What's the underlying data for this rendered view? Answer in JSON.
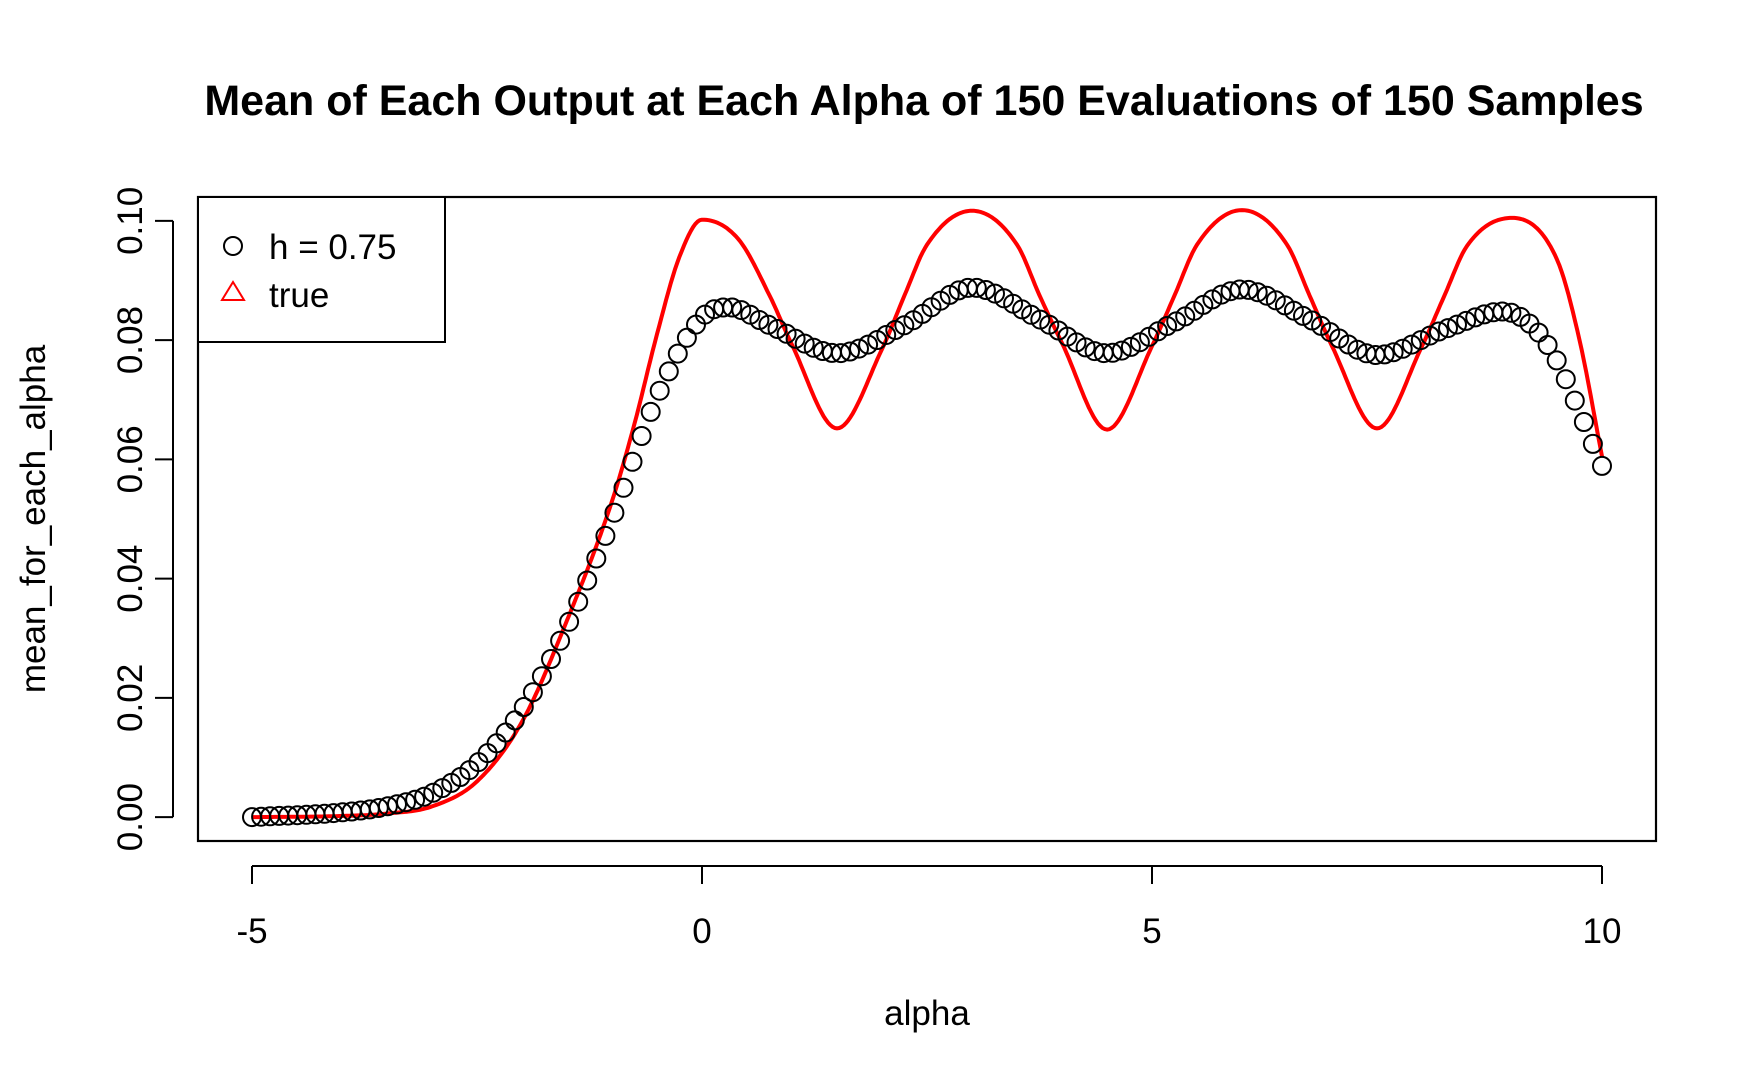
{
  "chart_data": {
    "type": "line",
    "title": "Mean of Each Output at Each Alpha of 150 Evaluations of 150 Samples",
    "xlabel": "alpha",
    "ylabel": "mean_for_each_alpha",
    "xlim": [
      -5.6,
      10.6
    ],
    "ylim": [
      -0.004,
      0.104
    ],
    "x_ticks": [
      -5,
      0,
      5,
      10
    ],
    "x_tick_labels": [
      "-5",
      "0",
      "5",
      "10"
    ],
    "y_ticks": [
      0,
      0.02,
      0.04,
      0.06,
      0.08,
      0.1
    ],
    "y_tick_labels": [
      "0.00",
      "0.02",
      "0.04",
      "0.06",
      "0.08",
      "0.10"
    ],
    "grid": false,
    "legend": {
      "position": "top-left",
      "entries": [
        "h = 0.75",
        "true"
      ]
    },
    "series": [
      {
        "name": "h = 0.75",
        "style": "points",
        "marker": "open-circle",
        "color": "#000000",
        "n_points": 150,
        "x_range": [
          -5,
          10
        ],
        "x": [
          -5.0,
          -4.0,
          -3.5,
          -3.0,
          -2.5,
          -2.0,
          -1.5,
          -1.0,
          -0.5,
          0.0,
          0.3,
          0.75,
          1.5,
          2.25,
          3.0,
          3.75,
          4.5,
          5.25,
          6.0,
          6.75,
          7.5,
          8.25,
          8.9,
          9.25,
          9.5,
          9.75,
          10.0
        ],
        "values": [
          0.0,
          0.0008,
          0.0018,
          0.004,
          0.009,
          0.018,
          0.032,
          0.05,
          0.0705,
          0.0838,
          0.0855,
          0.0825,
          0.0778,
          0.0825,
          0.0888,
          0.0835,
          0.0778,
          0.083,
          0.0885,
          0.0835,
          0.0775,
          0.0818,
          0.0848,
          0.082,
          0.0765,
          0.068,
          0.0589
        ]
      },
      {
        "name": "true",
        "style": "line",
        "marker": "triangle",
        "color": "#ff0000",
        "x": [
          -5.0,
          -4.0,
          -3.5,
          -3.0,
          -2.5,
          -2.0,
          -1.5,
          -1.0,
          -0.75,
          -0.5,
          -0.25,
          0.0,
          0.4,
          0.75,
          1.0,
          1.5,
          2.0,
          2.25,
          2.5,
          3.0,
          3.5,
          3.75,
          4.0,
          4.5,
          5.0,
          5.25,
          5.5,
          6.0,
          6.5,
          6.75,
          7.0,
          7.5,
          8.0,
          8.25,
          8.5,
          9.0,
          9.5,
          9.75,
          10.0
        ],
        "values": [
          0.0,
          0.0002,
          0.0006,
          0.0018,
          0.006,
          0.016,
          0.033,
          0.053,
          0.066,
          0.081,
          0.094,
          0.1002,
          0.097,
          0.0875,
          0.0792,
          0.0652,
          0.0785,
          0.0875,
          0.096,
          0.1017,
          0.096,
          0.0875,
          0.0795,
          0.065,
          0.079,
          0.0875,
          0.096,
          0.1018,
          0.096,
          0.0875,
          0.079,
          0.0652,
          0.079,
          0.0875,
          0.0958,
          0.1005,
          0.0935,
          0.08,
          0.0605
        ]
      }
    ]
  }
}
